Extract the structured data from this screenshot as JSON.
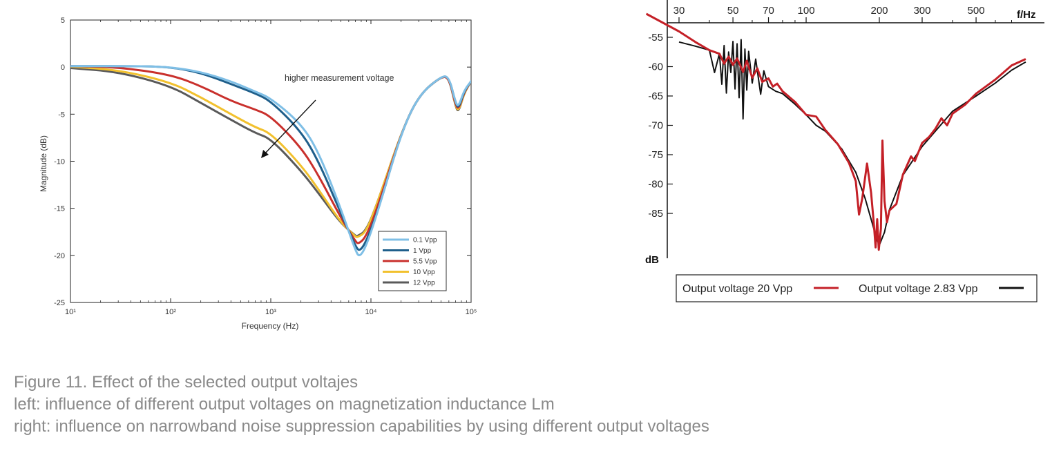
{
  "caption": {
    "line1": "Figure 11. Effect of the selected output voltajes",
    "line2": "left: influence of different output voltages on magnetization inductance Lm",
    "line3": "right: influence on narrowband noise suppression capabilities by using different output voltages"
  },
  "chart_data": [
    {
      "type": "line",
      "title": "",
      "xlabel": "Frequency (Hz)",
      "ylabel": "Magnitude (dB)",
      "xscale": "log",
      "xlim": [
        10,
        100000
      ],
      "ylim": [
        -25,
        5
      ],
      "xticks": [
        {
          "value": 10,
          "label": "10¹"
        },
        {
          "value": 100,
          "label": "10²"
        },
        {
          "value": 1000,
          "label": "10³"
        },
        {
          "value": 10000,
          "label": "10⁴"
        },
        {
          "value": 100000,
          "label": "10⁵"
        }
      ],
      "yticks": [
        5,
        0,
        -5,
        -10,
        -15,
        -20,
        -25
      ],
      "annotation": "higher measurement voltage",
      "legend_position": "bottom-right",
      "series": [
        {
          "name": "0.1 Vpp",
          "color": "#7fbfe6",
          "points": [
            [
              10,
              0.1
            ],
            [
              50,
              0.1
            ],
            [
              100,
              0
            ],
            [
              200,
              -0.5
            ],
            [
              400,
              -1.5
            ],
            [
              700,
              -2.6
            ],
            [
              1000,
              -3.3
            ],
            [
              2000,
              -6
            ],
            [
              3000,
              -9
            ],
            [
              5000,
              -15
            ],
            [
              7000,
              -19.5
            ],
            [
              7700,
              -20.2
            ],
            [
              9000,
              -19
            ],
            [
              12000,
              -15
            ],
            [
              20000,
              -7
            ],
            [
              30000,
              -3
            ],
            [
              50000,
              -1
            ],
            [
              60000,
              -1
            ],
            [
              70000,
              -3.8
            ],
            [
              75000,
              -4.2
            ],
            [
              85000,
              -2.5
            ],
            [
              100000,
              -1.5
            ]
          ]
        },
        {
          "name": "1 Vpp",
          "color": "#1f5f8b",
          "points": [
            [
              10,
              0.1
            ],
            [
              50,
              0.1
            ],
            [
              100,
              0
            ],
            [
              200,
              -0.6
            ],
            [
              400,
              -1.8
            ],
            [
              700,
              -2.8
            ],
            [
              1000,
              -3.6
            ],
            [
              2000,
              -6.8
            ],
            [
              3000,
              -10
            ],
            [
              5000,
              -15.5
            ],
            [
              7000,
              -19
            ],
            [
              7700,
              -19.6
            ],
            [
              9000,
              -18.5
            ],
            [
              12000,
              -15
            ],
            [
              20000,
              -7
            ],
            [
              30000,
              -3
            ],
            [
              50000,
              -1
            ],
            [
              60000,
              -1
            ],
            [
              70000,
              -3.8
            ],
            [
              75000,
              -4.4
            ],
            [
              85000,
              -2.6
            ],
            [
              100000,
              -1.5
            ]
          ]
        },
        {
          "name": "5.5 Vpp",
          "color": "#c9302c",
          "points": [
            [
              10,
              0.1
            ],
            [
              30,
              0
            ],
            [
              100,
              -0.8
            ],
            [
              200,
              -2.0
            ],
            [
              400,
              -3.6
            ],
            [
              700,
              -4.5
            ],
            [
              1000,
              -5.2
            ],
            [
              2000,
              -8.5
            ],
            [
              3000,
              -11.5
            ],
            [
              5000,
              -16
            ],
            [
              7000,
              -18.5
            ],
            [
              7500,
              -18.8
            ],
            [
              9000,
              -18
            ],
            [
              12000,
              -14.5
            ],
            [
              20000,
              -7
            ],
            [
              30000,
              -3
            ],
            [
              50000,
              -1
            ],
            [
              60000,
              -1.1
            ],
            [
              70000,
              -4
            ],
            [
              75000,
              -4.5
            ],
            [
              85000,
              -2.7
            ],
            [
              100000,
              -1.5
            ]
          ]
        },
        {
          "name": "10 Vpp",
          "color": "#f2c12e",
          "points": [
            [
              10,
              0.05
            ],
            [
              30,
              -0.3
            ],
            [
              100,
              -1.6
            ],
            [
              200,
              -3.2
            ],
            [
              400,
              -5
            ],
            [
              700,
              -6.4
            ],
            [
              1000,
              -7
            ],
            [
              2000,
              -10.4
            ],
            [
              3000,
              -13
            ],
            [
              5000,
              -16.5
            ],
            [
              7000,
              -18
            ],
            [
              7300,
              -18.1
            ],
            [
              9000,
              -17.5
            ],
            [
              12000,
              -14
            ],
            [
              20000,
              -7
            ],
            [
              30000,
              -3
            ],
            [
              50000,
              -1
            ],
            [
              60000,
              -1.1
            ],
            [
              70000,
              -4.1
            ],
            [
              75000,
              -4.7
            ],
            [
              85000,
              -2.8
            ],
            [
              100000,
              -1.5
            ]
          ]
        },
        {
          "name": "12 Vpp",
          "color": "#5a5a5a",
          "points": [
            [
              10,
              -0.1
            ],
            [
              30,
              -0.5
            ],
            [
              100,
              -2
            ],
            [
              200,
              -3.8
            ],
            [
              400,
              -5.6
            ],
            [
              700,
              -7
            ],
            [
              1000,
              -7.6
            ],
            [
              2000,
              -11
            ],
            [
              3000,
              -13.4
            ],
            [
              5000,
              -16.6
            ],
            [
              7000,
              -17.9
            ],
            [
              7200,
              -18
            ],
            [
              9000,
              -17.4
            ],
            [
              12000,
              -14
            ],
            [
              20000,
              -7
            ],
            [
              30000,
              -3
            ],
            [
              50000,
              -1
            ],
            [
              60000,
              -1.1
            ],
            [
              70000,
              -4.2
            ],
            [
              75000,
              -4.8
            ],
            [
              85000,
              -2.8
            ],
            [
              100000,
              -1.5
            ]
          ]
        }
      ]
    },
    {
      "type": "line",
      "title": "",
      "xlabel": "f/Hz",
      "ylabel": "dB",
      "xscale": "log",
      "xlim": [
        22,
        1000
      ],
      "ylim": [
        -95,
        -50
      ],
      "xticks": [
        30,
        50,
        70,
        100,
        200,
        300,
        500
      ],
      "yticks": [
        -55,
        -60,
        -65,
        -70,
        -75,
        -80,
        -85
      ],
      "legend_position": "bottom",
      "series": [
        {
          "name": "Output voltage 20 Vpp",
          "color": "#c42027",
          "points": [
            [
              22,
              -51
            ],
            [
              30,
              -54
            ],
            [
              35,
              -55.8
            ],
            [
              40,
              -57.2
            ],
            [
              44,
              -57.8
            ],
            [
              46,
              -59.5
            ],
            [
              48,
              -58.3
            ],
            [
              50,
              -59.7
            ],
            [
              52,
              -58.6
            ],
            [
              55,
              -60.9
            ],
            [
              57,
              -59
            ],
            [
              60,
              -61.9
            ],
            [
              63,
              -60.3
            ],
            [
              66,
              -62.6
            ],
            [
              70,
              -62
            ],
            [
              73,
              -63.4
            ],
            [
              76,
              -62.9
            ],
            [
              80,
              -64.2
            ],
            [
              90,
              -66
            ],
            [
              100,
              -68.2
            ],
            [
              110,
              -68.5
            ],
            [
              120,
              -70.8
            ],
            [
              135,
              -73.2
            ],
            [
              150,
              -76.4
            ],
            [
              160,
              -79.5
            ],
            [
              165,
              -85.2
            ],
            [
              170,
              -82.5
            ],
            [
              178,
              -76.5
            ],
            [
              185,
              -81.5
            ],
            [
              190,
              -87
            ],
            [
              193,
              -90.8
            ],
            [
              196,
              -86
            ],
            [
              199,
              -91.2
            ],
            [
              203,
              -87.6
            ],
            [
              206,
              -72.6
            ],
            [
              210,
              -82.9
            ],
            [
              215,
              -86.5
            ],
            [
              220,
              -84.5
            ],
            [
              235,
              -83.4
            ],
            [
              250,
              -78.4
            ],
            [
              270,
              -75.3
            ],
            [
              280,
              -76.1
            ],
            [
              300,
              -73
            ],
            [
              320,
              -72
            ],
            [
              340,
              -70.6
            ],
            [
              360,
              -68.8
            ],
            [
              380,
              -70
            ],
            [
              400,
              -68
            ],
            [
              450,
              -66.5
            ],
            [
              500,
              -64.6
            ],
            [
              600,
              -62.2
            ],
            [
              700,
              -59.8
            ],
            [
              800,
              -58.7
            ]
          ]
        },
        {
          "name": "Output voltage 2.83 Vpp",
          "color": "#111111",
          "points": [
            [
              30,
              -55.8
            ],
            [
              35,
              -56.5
            ],
            [
              40,
              -57.2
            ],
            [
              42,
              -61
            ],
            [
              44,
              -57.8
            ],
            [
              45,
              -63
            ],
            [
              46,
              -56.4
            ],
            [
              47,
              -64.5
            ],
            [
              48,
              -57.5
            ],
            [
              49,
              -61
            ],
            [
              50,
              -55.7
            ],
            [
              51,
              -63.8
            ],
            [
              52,
              -56.1
            ],
            [
              53,
              -65.3
            ],
            [
              54,
              -55.4
            ],
            [
              55,
              -68.9
            ],
            [
              56,
              -57
            ],
            [
              57,
              -64
            ],
            [
              58,
              -57.4
            ],
            [
              60,
              -62.8
            ],
            [
              62,
              -58.7
            ],
            [
              65,
              -64.7
            ],
            [
              67,
              -60.7
            ],
            [
              70,
              -63.4
            ],
            [
              75,
              -64.2
            ],
            [
              80,
              -64.6
            ],
            [
              90,
              -66.4
            ],
            [
              100,
              -68.2
            ],
            [
              110,
              -70
            ],
            [
              120,
              -71
            ],
            [
              140,
              -74
            ],
            [
              160,
              -78
            ],
            [
              175,
              -82.5
            ],
            [
              185,
              -86
            ],
            [
              195,
              -89.3
            ],
            [
              200,
              -90.4
            ],
            [
              210,
              -88.2
            ],
            [
              220,
              -84.4
            ],
            [
              250,
              -78.5
            ],
            [
              300,
              -73.6
            ],
            [
              400,
              -67.6
            ],
            [
              500,
              -65
            ],
            [
              600,
              -62.8
            ],
            [
              700,
              -60.6
            ],
            [
              800,
              -59.2
            ]
          ]
        }
      ]
    }
  ]
}
